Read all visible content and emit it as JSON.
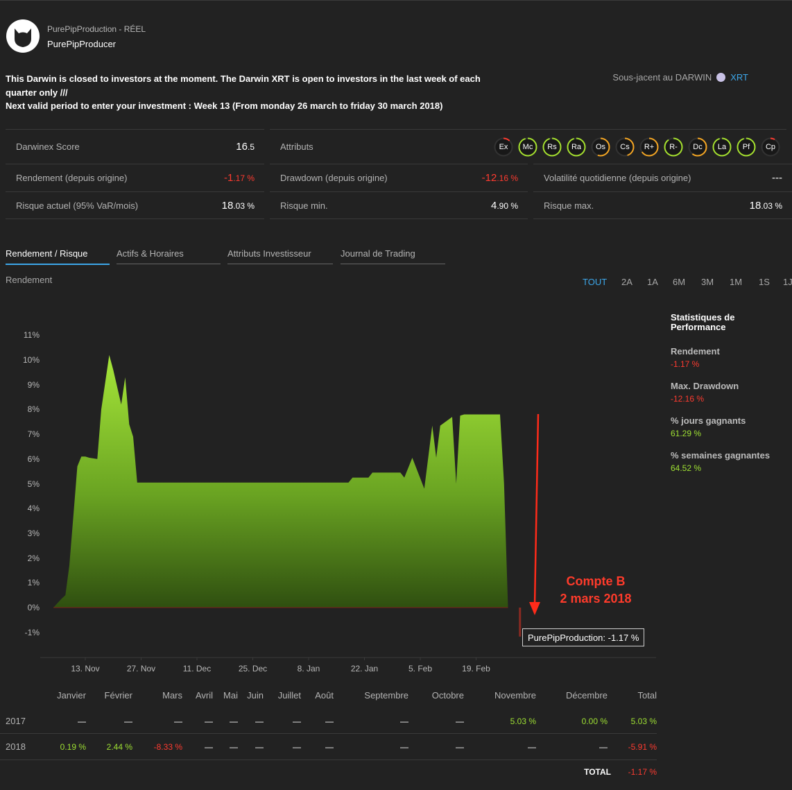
{
  "account": {
    "subtitle": "PurePipProduction - RÉEL",
    "name": "PurePipProducer"
  },
  "notice": {
    "line1": "This Darwin is closed to investors at the moment. The Darwin XRT is open to investors in the last week of each quarter only ///",
    "line2": "Next valid period to enter your investment : Week 13 (From monday 26 march to friday 30 march 2018)"
  },
  "underlying": {
    "label": "Sous-jacent au DARWIN",
    "link": "XRT"
  },
  "metrics": {
    "score_label": "Darwinex Score",
    "score_int": "16",
    "score_dec": ".5",
    "attributes_label": "Attributs",
    "return_label": "Rendement (depuis origine)",
    "return_int": "-1",
    "return_dec": ".17 %",
    "drawdown_label": "Drawdown (depuis origine)",
    "drawdown_int": "-12",
    "drawdown_dec": ".16 %",
    "volatility_label": "Volatilité quotidienne (depuis origine)",
    "volatility_value": "---",
    "risk_label": "Risque actuel (95% VaR/mois)",
    "risk_int": "18",
    "risk_dec": ".03 %",
    "risk_min_label": "Risque min.",
    "risk_min_int": "4",
    "risk_min_dec": ".90 %",
    "risk_max_label": "Risque max.",
    "risk_max_int": "18",
    "risk_max_dec": ".03 %"
  },
  "attributes": [
    {
      "code": "Ex",
      "level": 0.12,
      "color": "#ff3b30"
    },
    {
      "code": "Mc",
      "level": 0.95,
      "color": "#a6e22e"
    },
    {
      "code": "Rs",
      "level": 0.95,
      "color": "#a6e22e"
    },
    {
      "code": "Ra",
      "level": 0.95,
      "color": "#a6e22e"
    },
    {
      "code": "Os",
      "level": 0.55,
      "color": "#f5a623"
    },
    {
      "code": "Cs",
      "level": 0.45,
      "color": "#f5a623"
    },
    {
      "code": "R+",
      "level": 0.65,
      "color": "#f5a623"
    },
    {
      "code": "R-",
      "level": 0.9,
      "color": "#a6e22e"
    },
    {
      "code": "Dc",
      "level": 0.6,
      "color": "#f5a623"
    },
    {
      "code": "La",
      "level": 0.95,
      "color": "#a6e22e"
    },
    {
      "code": "Pf",
      "level": 0.95,
      "color": "#a6e22e"
    },
    {
      "code": "Cp",
      "level": 0.08,
      "color": "#ff3b30"
    }
  ],
  "tabs": [
    "Rendement / Risque",
    "Actifs & Horaires",
    "Attributs Investisseur",
    "Journal de Trading"
  ],
  "chart_section_label": "Rendement",
  "ranges": [
    "TOUT",
    "2A",
    "1A",
    "6M",
    "3M",
    "1M",
    "1S",
    "1J"
  ],
  "stats": {
    "title": "Statistiques de Performance",
    "items": [
      {
        "label": "Rendement",
        "value": "-1.17 %",
        "tone": "red"
      },
      {
        "label": "Max. Drawdown",
        "value": "-12.16 %",
        "tone": "red"
      },
      {
        "label": "% jours gagnants",
        "value": "61.29 %",
        "tone": "green"
      },
      {
        "label": "% semaines gagnantes",
        "value": "64.52 %",
        "tone": "green"
      }
    ]
  },
  "chart_data": {
    "type": "area",
    "title": "",
    "xlabel": "",
    "ylabel": "",
    "y_unit": "%",
    "ylim": [
      -1.9,
      11
    ],
    "yticks": [
      11,
      10,
      9,
      8,
      7,
      6,
      5,
      4,
      3,
      2,
      1,
      0,
      -1
    ],
    "ytick_labels": [
      "11%",
      "10%",
      "9%",
      "8%",
      "7%",
      "6%",
      "5%",
      "4%",
      "3%",
      "2%",
      "1%",
      "0%",
      "-1%"
    ],
    "xticks": [
      "2017-11-13",
      "2017-11-27",
      "2017-12-11",
      "2017-12-25",
      "2018-01-08",
      "2018-01-22",
      "2018-02-05",
      "2018-02-19"
    ],
    "xtick_labels": [
      "13. Nov",
      "27. Nov",
      "11. Dec",
      "25. Dec",
      "8. Jan",
      "22. Jan",
      "5. Feb",
      "19. Feb"
    ],
    "series": [
      {
        "name": "PurePipProduction",
        "points": [
          [
            "2017-11-05",
            0.0
          ],
          [
            "2017-11-07",
            0.35
          ],
          [
            "2017-11-08",
            0.5
          ],
          [
            "2017-11-09",
            1.7
          ],
          [
            "2017-11-10",
            3.7
          ],
          [
            "2017-11-11",
            5.7
          ],
          [
            "2017-11-12",
            6.1
          ],
          [
            "2017-11-13",
            6.1
          ],
          [
            "2017-11-14",
            6.05
          ],
          [
            "2017-11-16",
            6.0
          ],
          [
            "2017-11-17",
            8.0
          ],
          [
            "2017-11-19",
            10.2
          ],
          [
            "2017-11-20",
            9.6
          ],
          [
            "2017-11-22",
            8.2
          ],
          [
            "2017-11-23",
            9.3
          ],
          [
            "2017-11-24",
            7.4
          ],
          [
            "2017-11-25",
            6.9
          ],
          [
            "2017-11-26",
            5.05
          ],
          [
            "2018-01-18",
            5.05
          ],
          [
            "2018-01-19",
            5.25
          ],
          [
            "2018-01-23",
            5.25
          ],
          [
            "2018-01-24",
            5.45
          ],
          [
            "2018-01-31",
            5.45
          ],
          [
            "2018-02-01",
            5.25
          ],
          [
            "2018-02-03",
            6.05
          ],
          [
            "2018-02-06",
            4.8
          ],
          [
            "2018-02-08",
            7.35
          ],
          [
            "2018-02-09",
            6.05
          ],
          [
            "2018-02-10",
            7.35
          ],
          [
            "2018-02-13",
            7.7
          ],
          [
            "2018-02-14",
            5.0
          ],
          [
            "2018-02-15",
            7.75
          ],
          [
            "2018-02-16",
            7.8
          ],
          [
            "2018-02-25",
            7.8
          ],
          [
            "2018-02-26",
            5.0
          ],
          [
            "2018-02-27",
            0.0
          ],
          [
            "2018-03-02",
            -1.17
          ]
        ]
      }
    ],
    "tooltip": "PurePipProduction: -1.17 %",
    "annotation": [
      "Compte B",
      "2 mars 2018"
    ],
    "grid": false,
    "legend": "none"
  },
  "monthly": {
    "months": [
      "Janvier",
      "Février",
      "Mars",
      "Avril",
      "Mai",
      "Juin",
      "Juillet",
      "Août",
      "Septembre",
      "Octobre",
      "Novembre",
      "Décembre",
      "Total"
    ],
    "rows": [
      {
        "year": "2017",
        "cells": [
          {
            "v": "—",
            "t": ""
          },
          {
            "v": "—",
            "t": ""
          },
          {
            "v": "—",
            "t": ""
          },
          {
            "v": "—",
            "t": ""
          },
          {
            "v": "—",
            "t": ""
          },
          {
            "v": "—",
            "t": ""
          },
          {
            "v": "—",
            "t": ""
          },
          {
            "v": "—",
            "t": ""
          },
          {
            "v": "—",
            "t": ""
          },
          {
            "v": "—",
            "t": ""
          },
          {
            "v": "5.03 %",
            "t": "green"
          },
          {
            "v": "0.00 %",
            "t": "green"
          },
          {
            "v": "5.03 %",
            "t": "green"
          }
        ]
      },
      {
        "year": "2018",
        "cells": [
          {
            "v": "0.19 %",
            "t": "green"
          },
          {
            "v": "2.44 %",
            "t": "green"
          },
          {
            "v": "-8.33 %",
            "t": "red"
          },
          {
            "v": "—",
            "t": ""
          },
          {
            "v": "—",
            "t": ""
          },
          {
            "v": "—",
            "t": ""
          },
          {
            "v": "—",
            "t": ""
          },
          {
            "v": "—",
            "t": ""
          },
          {
            "v": "—",
            "t": ""
          },
          {
            "v": "—",
            "t": ""
          },
          {
            "v": "—",
            "t": ""
          },
          {
            "v": "—",
            "t": ""
          },
          {
            "v": "-5.91 %",
            "t": "red"
          }
        ]
      }
    ],
    "total_label": "TOTAL",
    "total_value": "-1.17 %"
  }
}
